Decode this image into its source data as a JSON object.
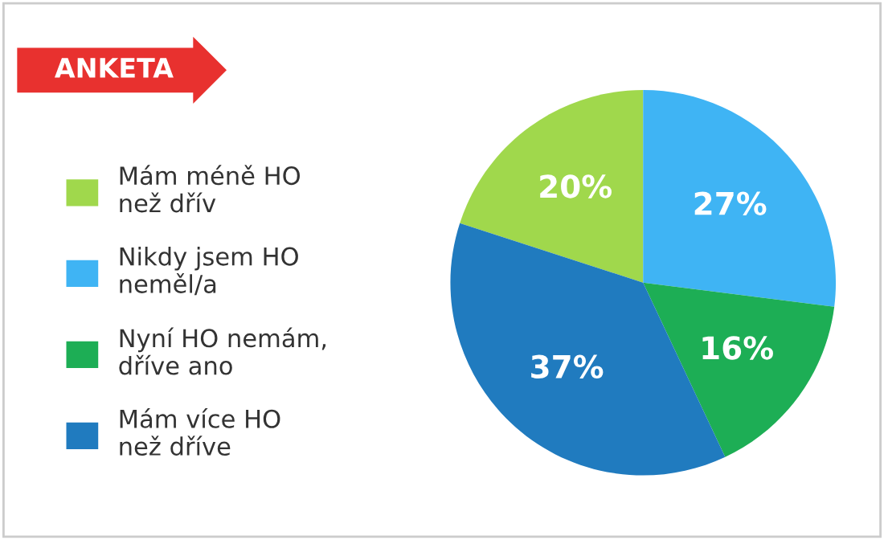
{
  "chart_data": {
    "type": "pie",
    "title": "ANKETA",
    "categories": [
      "Mám méně HO\nnež dřív",
      "Nikdy jsem HO\nneměl/a",
      "Nyní HO nemám,\ndříve ano",
      "Mám více HO\nnež dříve"
    ],
    "values": [
      20,
      27,
      16,
      37
    ],
    "value_labels": [
      "20%",
      "27%",
      "16%",
      "37%"
    ],
    "colors": [
      "#a0d84c",
      "#3fb4f4",
      "#1dae55",
      "#207bbf"
    ],
    "legend": "left"
  }
}
